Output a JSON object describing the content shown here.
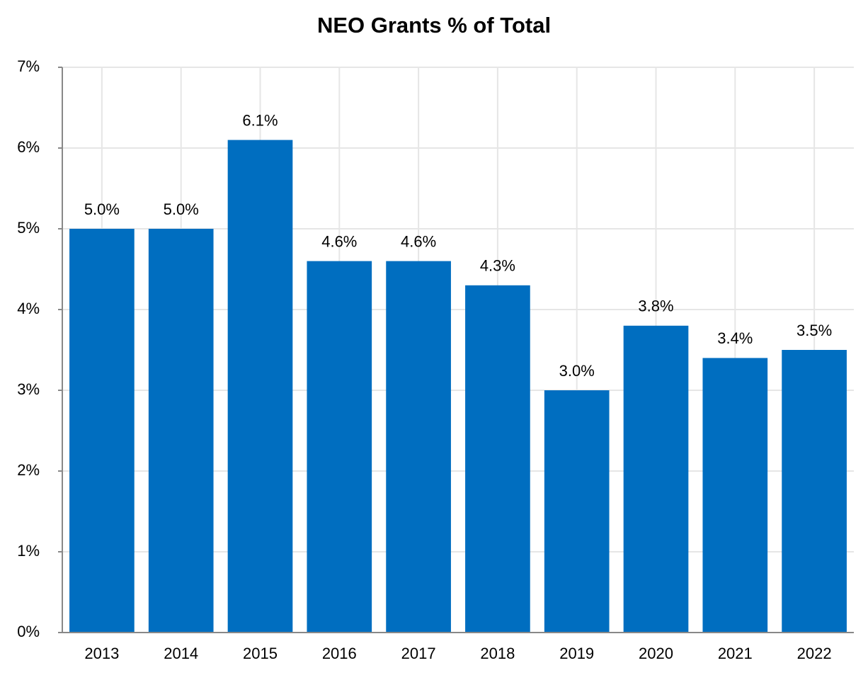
{
  "chart_data": {
    "type": "bar",
    "title": "NEO Grants % of Total",
    "categories": [
      "2013",
      "2014",
      "2015",
      "2016",
      "2017",
      "2018",
      "2019",
      "2020",
      "2021",
      "2022"
    ],
    "values": [
      5.0,
      5.0,
      6.1,
      4.6,
      4.6,
      4.3,
      3.0,
      3.8,
      3.4,
      3.5
    ],
    "value_labels": [
      "5.0%",
      "5.0%",
      "6.1%",
      "4.6%",
      "4.6%",
      "4.3%",
      "3.0%",
      "3.8%",
      "3.4%",
      "3.5%"
    ],
    "color": "#006ec0",
    "ylim": [
      0,
      7
    ],
    "yticks": [
      {
        "value": 0,
        "label": "0%"
      },
      {
        "value": 1,
        "label": "1%"
      },
      {
        "value": 2,
        "label": "2%"
      },
      {
        "value": 3,
        "label": "3%"
      },
      {
        "value": 4,
        "label": "4%"
      },
      {
        "value": 5,
        "label": "5%"
      },
      {
        "value": 6,
        "label": "6%"
      },
      {
        "value": 7,
        "label": "7%"
      }
    ],
    "grid": true
  }
}
